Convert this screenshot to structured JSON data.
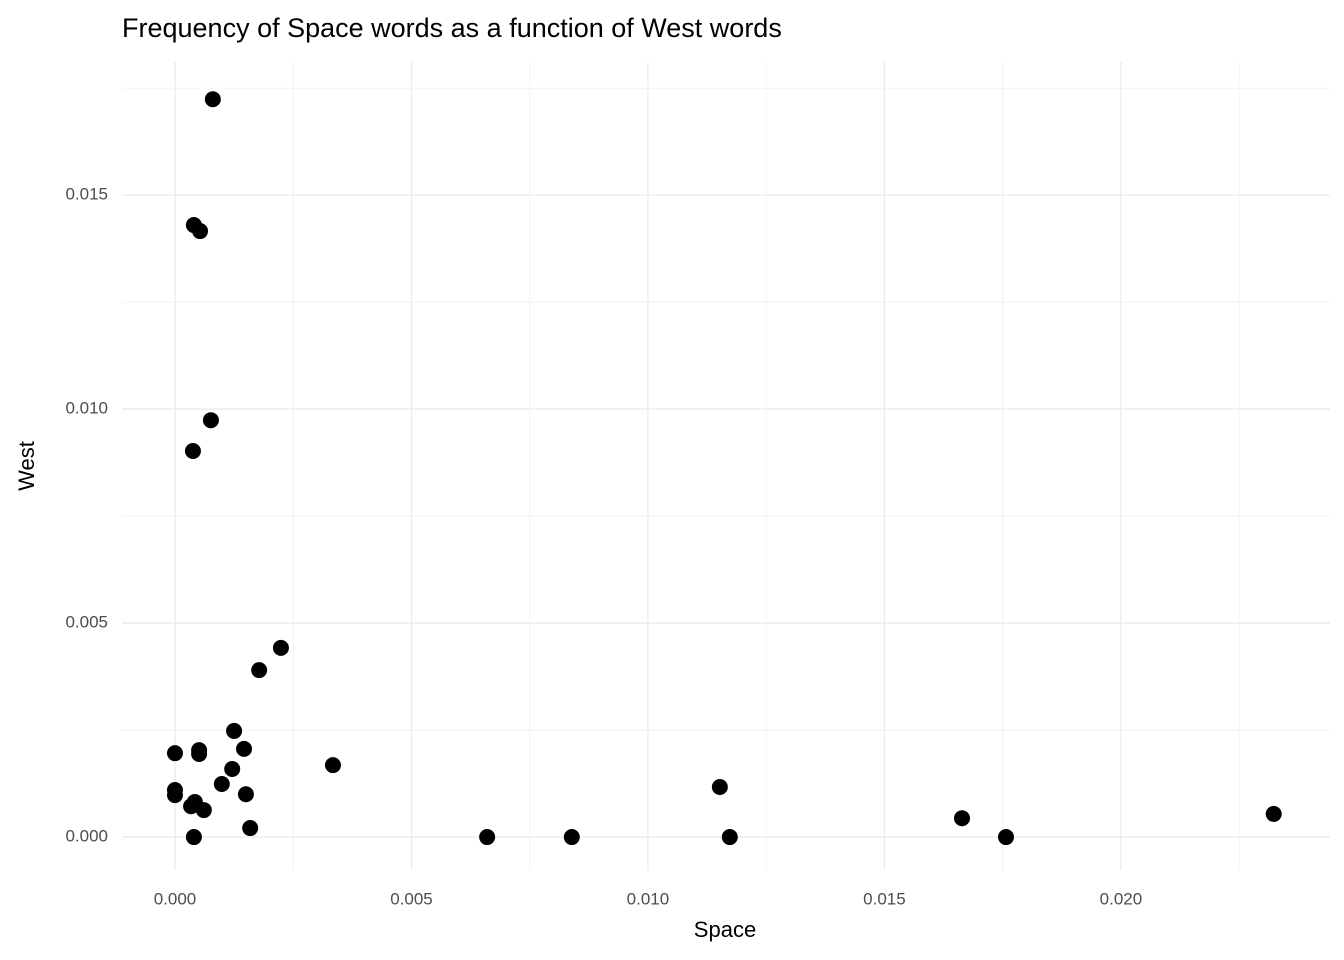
{
  "chart_data": {
    "type": "scatter",
    "title": "Frequency of Space words as a function of West words",
    "x_label": "Space",
    "y_label": "West",
    "color": "#000000",
    "grid": true,
    "xlim": [
      -0.00112,
      0.02442
    ],
    "ylim": [
      -0.00077,
      0.01811
    ],
    "xticks": [
      {
        "value": 0,
        "label": "0.000"
      },
      {
        "value": 0.005,
        "label": "0.005"
      },
      {
        "value": 0.01,
        "label": "0.010"
      },
      {
        "value": 0.015,
        "label": "0.015"
      },
      {
        "value": 0.02,
        "label": "0.020"
      }
    ],
    "yticks": [
      {
        "value": 0,
        "label": "0.000"
      },
      {
        "value": 0.005,
        "label": "0.005"
      },
      {
        "value": 0.01,
        "label": "0.010"
      },
      {
        "value": 0.015,
        "label": "0.015"
      }
    ],
    "x": [
      0.0008,
      0.0004,
      0.00053,
      0.00076,
      0.00038,
      0.00224,
      0.00178,
      0.00125,
      0,
      0.00051,
      0.00051,
      0.00146,
      0.00334,
      0.00121,
      0.00099,
      0.01152,
      0,
      0,
      0.0015,
      0.00042,
      0.00034,
      0.00061,
      0.00159,
      0.0004,
      0.0066,
      0.00839,
      0.01173,
      0.01664,
      0.01757,
      0.02323
    ],
    "y": [
      0.01724,
      0.0143,
      0.01416,
      0.00974,
      0.00902,
      0.00442,
      0.0039,
      0.00248,
      0.00196,
      0.00203,
      0.00194,
      0.00206,
      0.00168,
      0.00159,
      0.00124,
      0.00117,
      0.0011,
      0.00098,
      0.001,
      0.00082,
      0.00072,
      0.00063,
      0.00021,
      0,
      0,
      0,
      0,
      0.00044,
      0,
      0.00054
    ]
  }
}
